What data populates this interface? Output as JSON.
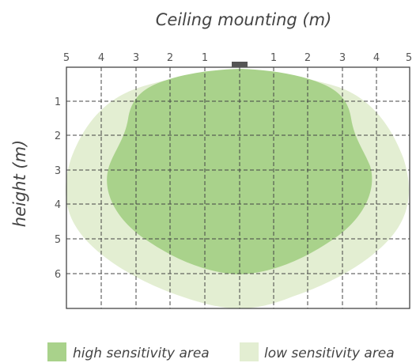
{
  "title": "Ceiling mounting (m)",
  "y_axis_label": "height (m)",
  "top_ticks": [
    "5",
    "4",
    "3",
    "2",
    "1",
    "1",
    "2",
    "3",
    "4",
    "5"
  ],
  "left_ticks": [
    "1",
    "2",
    "3",
    "4",
    "5",
    "6"
  ],
  "legend": {
    "high": "high sensitivity area",
    "low": "low sensitivity area"
  },
  "colors": {
    "high_area": "#a9d28b",
    "low_area": "#e3eed2",
    "grid": "#444444",
    "sensor": "#555555"
  },
  "zones": {
    "high": {
      "max_radius_m": 3.8,
      "max_depth_m": 6
    },
    "low": {
      "max_radius_m": 5,
      "max_depth_m": 7
    }
  }
}
